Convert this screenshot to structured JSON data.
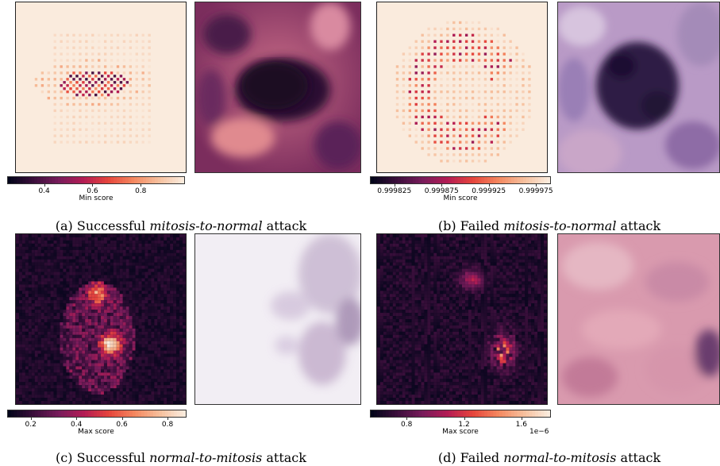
{
  "panels": [
    {
      "id": "a",
      "heatmap": {
        "cmap": "light",
        "pattern": "bar",
        "colors": [
          "#fbe9dd",
          "#f7b196",
          "#e8554a",
          "#a11a4f",
          "#230c22"
        ]
      },
      "photo": {
        "description_colors": [
          "#a8527a",
          "#5e2455",
          "#1b0a24"
        ]
      },
      "colorbar": {
        "label": "Min score",
        "ticks": [
          "0.4",
          "0.6",
          "0.8"
        ],
        "range": [
          0.25,
          0.98
        ],
        "tick_values": [
          0.4,
          0.6,
          0.8
        ],
        "exponent": ""
      },
      "caption": {
        "prefix": "(a) Successful ",
        "italic": "mitosis-to-normal",
        "suffix": " attack"
      }
    },
    {
      "id": "b",
      "heatmap": {
        "cmap": "light",
        "pattern": "ring"
      },
      "colorbar": {
        "label": "Min score",
        "ticks": [
          "0.999825",
          "0.999875",
          "0.999925",
          "0.999975"
        ],
        "range": [
          0.9998,
          0.99999
        ],
        "tick_values": [
          0.999825,
          0.999875,
          0.999925,
          0.999975
        ],
        "exponent": ""
      },
      "caption": {
        "prefix": "(b) Failed ",
        "italic": "mitosis-to-normal",
        "suffix": " attack"
      }
    },
    {
      "id": "c",
      "heatmap": {
        "cmap": "dark",
        "pattern": "blob"
      },
      "colorbar": {
        "label": "Max score",
        "ticks": [
          "0.2",
          "0.4",
          "0.6",
          "0.8"
        ],
        "range": [
          0.1,
          0.88
        ],
        "tick_values": [
          0.2,
          0.4,
          0.6,
          0.8
        ],
        "exponent": ""
      },
      "caption": {
        "prefix": "(c) Successful ",
        "italic": "normal-to-mitosis",
        "suffix": " attack"
      }
    },
    {
      "id": "d",
      "heatmap": {
        "cmap": "dark",
        "pattern": "scatter"
      },
      "colorbar": {
        "label": "Max score",
        "ticks": [
          "0.8",
          "1.2",
          "1.6"
        ],
        "range": [
          0.55,
          1.8
        ],
        "tick_values": [
          0.8,
          1.2,
          1.6
        ],
        "exponent": "1e−6"
      },
      "caption": {
        "prefix": "(d) Failed ",
        "italic": "normal-to-mitosis",
        "suffix": " attack"
      }
    }
  ]
}
